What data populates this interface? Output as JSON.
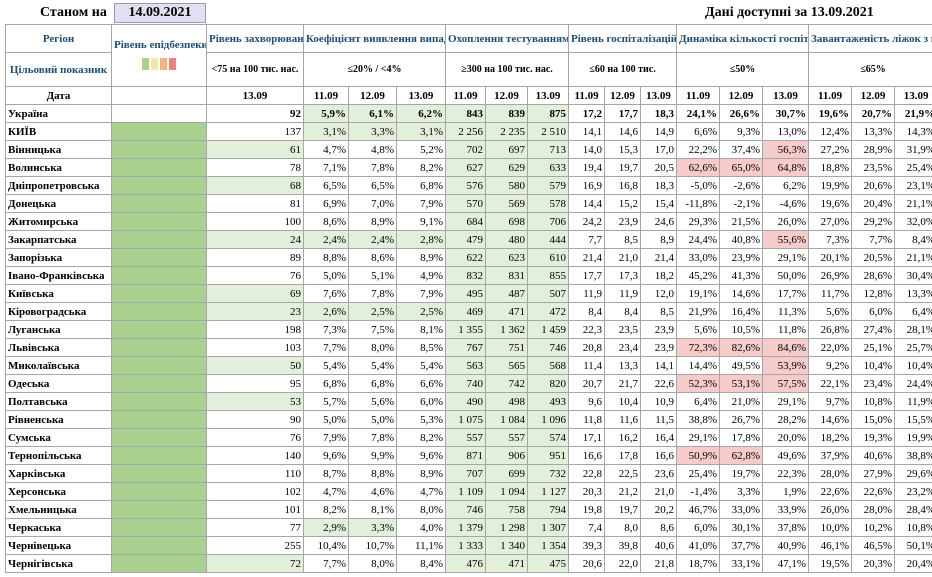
{
  "top": {
    "as_of_label": "Станом на",
    "as_of_date": "14.09.2021",
    "data_available": "Дані доступні за 13.09.2021"
  },
  "headers": {
    "region": "Регіон",
    "target": "Цільовий показник",
    "date_label": "Дата",
    "epid": "Рівень епідбезпеки",
    "morbidity": "Рівень захворюваності",
    "morbidity_target": "<75 на 100 тис. нас.",
    "detection": "Коефіцієнт виявлення випадків інфікування",
    "detection_target": "≤20% / <4%",
    "testing": "Охоплення тестуванням",
    "testing_target": "≥300 на 100 тис. нас.",
    "hosp": "Рівень госпіталізацій",
    "hosp_target": "≤60 на 100 тис.",
    "hosp_dyn": "Динаміка кількості госпіталізацій",
    "hosp_dyn_target": "≤50%",
    "oxygen": "Завантаженість ліжок з киснем",
    "oxygen_target": "≤65%"
  },
  "legend_colors": [
    "#a9d08e",
    "#ffe699",
    "#f4b183",
    "#f08080"
  ],
  "colors": {
    "zone_green": "#a9d08e",
    "light_green": "#e2efda",
    "light_red": "#f8cbcb",
    "header_blue": "#1f4e79"
  },
  "dates": {
    "morbidity": "13.09",
    "triple": [
      "11.09",
      "12.09",
      "13.09"
    ]
  },
  "ukraine": {
    "name": "Україна",
    "morbidity": "92",
    "detection": [
      "5,9%",
      "6,1%",
      "6,2%"
    ],
    "testing": [
      "843",
      "839",
      "875"
    ],
    "hosp": [
      "17,2",
      "17,7",
      "18,3"
    ],
    "hosp_dyn": [
      "24,1%",
      "26,6%",
      "30,7%"
    ],
    "oxygen": [
      "19,6%",
      "20,7%",
      "21,9%"
    ]
  },
  "regions": [
    {
      "name": "КИЇВ",
      "morbidity": "137",
      "detection": [
        "3,1%",
        "3,3%",
        "3,1%"
      ],
      "testing": [
        "2 256",
        "2 235",
        "2 510"
      ],
      "hosp": [
        "14,1",
        "14,6",
        "14,9"
      ],
      "hosp_dyn": [
        "6,6%",
        "9,3%",
        "13,0%"
      ],
      "oxygen": [
        "12,4%",
        "13,3%",
        "14,3%"
      ]
    },
    {
      "name": "Вінницька",
      "morbidity": "61",
      "detection": [
        "4,7%",
        "4,8%",
        "5,2%"
      ],
      "testing": [
        "702",
        "697",
        "713"
      ],
      "hosp": [
        "14,0",
        "15,3",
        "17,0"
      ],
      "hosp_dyn": [
        "22,2%",
        "37,4%",
        "56,3%"
      ],
      "oxygen": [
        "27,2%",
        "28,9%",
        "31,9%"
      ]
    },
    {
      "name": "Волинська",
      "morbidity": "78",
      "detection": [
        "7,1%",
        "7,8%",
        "8,2%"
      ],
      "testing": [
        "627",
        "629",
        "633"
      ],
      "hosp": [
        "19,4",
        "19,7",
        "20,5"
      ],
      "hosp_dyn": [
        "62,6%",
        "65,0%",
        "64,8%"
      ],
      "oxygen": [
        "18,8%",
        "23,5%",
        "25,4%"
      ]
    },
    {
      "name": "Дніпропетровська",
      "morbidity": "68",
      "detection": [
        "6,5%",
        "6,5%",
        "6,8%"
      ],
      "testing": [
        "576",
        "580",
        "579"
      ],
      "hosp": [
        "16,9",
        "16,8",
        "18,3"
      ],
      "hosp_dyn": [
        "-5,0%",
        "-2,6%",
        "6,2%"
      ],
      "oxygen": [
        "19,9%",
        "20,6%",
        "23,1%"
      ]
    },
    {
      "name": "Донецька",
      "morbidity": "81",
      "detection": [
        "6,9%",
        "7,0%",
        "7,9%"
      ],
      "testing": [
        "570",
        "569",
        "578"
      ],
      "hosp": [
        "14,4",
        "15,2",
        "15,4"
      ],
      "hosp_dyn": [
        "-11,8%",
        "-2,1%",
        "-4,6%"
      ],
      "oxygen": [
        "19,6%",
        "20,4%",
        "21,1%"
      ]
    },
    {
      "name": "Житомирська",
      "morbidity": "100",
      "detection": [
        "8,6%",
        "8,9%",
        "9,1%"
      ],
      "testing": [
        "684",
        "698",
        "706"
      ],
      "hosp": [
        "24,2",
        "23,9",
        "24,6"
      ],
      "hosp_dyn": [
        "29,3%",
        "21,5%",
        "26,0%"
      ],
      "oxygen": [
        "27,0%",
        "29,2%",
        "32,0%"
      ]
    },
    {
      "name": "Закарпатська",
      "morbidity": "24",
      "detection": [
        "2,4%",
        "2,4%",
        "2,8%"
      ],
      "testing": [
        "479",
        "480",
        "444"
      ],
      "hosp": [
        "7,7",
        "8,5",
        "8,9"
      ],
      "hosp_dyn": [
        "24,4%",
        "40,8%",
        "55,6%"
      ],
      "oxygen": [
        "7,3%",
        "7,7%",
        "8,4%"
      ]
    },
    {
      "name": "Запорізька",
      "morbidity": "89",
      "detection": [
        "8,8%",
        "8,6%",
        "8,9%"
      ],
      "testing": [
        "622",
        "623",
        "610"
      ],
      "hosp": [
        "21,4",
        "21,0",
        "21,4"
      ],
      "hosp_dyn": [
        "33,0%",
        "23,9%",
        "29,1%"
      ],
      "oxygen": [
        "20,1%",
        "20,5%",
        "21,1%"
      ]
    },
    {
      "name": "Івано-Франківська",
      "morbidity": "76",
      "detection": [
        "5,0%",
        "5,1%",
        "4,9%"
      ],
      "testing": [
        "832",
        "831",
        "855"
      ],
      "hosp": [
        "17,7",
        "17,3",
        "18,2"
      ],
      "hosp_dyn": [
        "45,2%",
        "41,3%",
        "50,0%"
      ],
      "oxygen": [
        "26,9%",
        "28,6%",
        "30,4%"
      ]
    },
    {
      "name": "Київська",
      "morbidity": "69",
      "detection": [
        "7,6%",
        "7,8%",
        "7,9%"
      ],
      "testing": [
        "495",
        "487",
        "507"
      ],
      "hosp": [
        "11,9",
        "11,9",
        "12,0"
      ],
      "hosp_dyn": [
        "19,1%",
        "14,6%",
        "17,7%"
      ],
      "oxygen": [
        "11,7%",
        "12,8%",
        "13,3%"
      ]
    },
    {
      "name": "Кіровоградська",
      "morbidity": "23",
      "detection": [
        "2,6%",
        "2,5%",
        "2,5%"
      ],
      "testing": [
        "469",
        "471",
        "472"
      ],
      "hosp": [
        "8,4",
        "8,4",
        "8,5"
      ],
      "hosp_dyn": [
        "21,9%",
        "16,4%",
        "11,3%"
      ],
      "oxygen": [
        "5,6%",
        "6,0%",
        "6,4%"
      ]
    },
    {
      "name": "Луганська",
      "morbidity": "198",
      "detection": [
        "7,3%",
        "7,5%",
        "8,1%"
      ],
      "testing": [
        "1 355",
        "1 362",
        "1 459"
      ],
      "hosp": [
        "22,3",
        "23,5",
        "23,9"
      ],
      "hosp_dyn": [
        "5,6%",
        "10,5%",
        "11,8%"
      ],
      "oxygen": [
        "26,8%",
        "27,4%",
        "28,1%"
      ]
    },
    {
      "name": "Львівська",
      "morbidity": "103",
      "detection": [
        "7,7%",
        "8,0%",
        "8,5%"
      ],
      "testing": [
        "767",
        "751",
        "746"
      ],
      "hosp": [
        "20,8",
        "23,4",
        "23,9"
      ],
      "hosp_dyn": [
        "72,3%",
        "82,6%",
        "84,6%"
      ],
      "oxygen": [
        "22,0%",
        "25,1%",
        "25,7%"
      ]
    },
    {
      "name": "Миколаївська",
      "morbidity": "50",
      "detection": [
        "5,4%",
        "5,4%",
        "5,4%"
      ],
      "testing": [
        "563",
        "565",
        "568"
      ],
      "hosp": [
        "11,4",
        "13,3",
        "14,1"
      ],
      "hosp_dyn": [
        "14,4%",
        "49,5%",
        "53,9%"
      ],
      "oxygen": [
        "9,2%",
        "10,4%",
        "10,4%"
      ]
    },
    {
      "name": "Одеська",
      "morbidity": "95",
      "detection": [
        "6,8%",
        "6,8%",
        "6,6%"
      ],
      "testing": [
        "740",
        "742",
        "820"
      ],
      "hosp": [
        "20,7",
        "21,7",
        "22,6"
      ],
      "hosp_dyn": [
        "52,3%",
        "53,1%",
        "57,5%"
      ],
      "oxygen": [
        "22,1%",
        "23,4%",
        "24,4%"
      ]
    },
    {
      "name": "Полтавська",
      "morbidity": "53",
      "detection": [
        "5,7%",
        "5,6%",
        "6,0%"
      ],
      "testing": [
        "490",
        "498",
        "493"
      ],
      "hosp": [
        "9,6",
        "10,4",
        "10,9"
      ],
      "hosp_dyn": [
        "6,4%",
        "21,0%",
        "29,1%"
      ],
      "oxygen": [
        "9,7%",
        "10,8%",
        "11,9%"
      ]
    },
    {
      "name": "Рівненська",
      "morbidity": "90",
      "detection": [
        "5,0%",
        "5,0%",
        "5,3%"
      ],
      "testing": [
        "1 075",
        "1 084",
        "1 096"
      ],
      "hosp": [
        "11,8",
        "11,6",
        "11,5"
      ],
      "hosp_dyn": [
        "38,8%",
        "26,7%",
        "28,2%"
      ],
      "oxygen": [
        "14,6%",
        "15,0%",
        "15,5%"
      ]
    },
    {
      "name": "Сумська",
      "morbidity": "76",
      "detection": [
        "7,9%",
        "7,8%",
        "8,2%"
      ],
      "testing": [
        "557",
        "557",
        "574"
      ],
      "hosp": [
        "17,1",
        "16,2",
        "16,4"
      ],
      "hosp_dyn": [
        "29,1%",
        "17,8%",
        "20,0%"
      ],
      "oxygen": [
        "18,2%",
        "19,3%",
        "19,9%"
      ]
    },
    {
      "name": "Тернопільська",
      "morbidity": "140",
      "detection": [
        "9,6%",
        "9,9%",
        "9,6%"
      ],
      "testing": [
        "871",
        "906",
        "951"
      ],
      "hosp": [
        "16,6",
        "17,8",
        "16,6"
      ],
      "hosp_dyn": [
        "50,9%",
        "62,8%",
        "49,6%"
      ],
      "oxygen": [
        "37,9%",
        "40,6%",
        "38,8%"
      ]
    },
    {
      "name": "Харківська",
      "morbidity": "110",
      "detection": [
        "8,7%",
        "8,8%",
        "8,9%"
      ],
      "testing": [
        "707",
        "699",
        "732"
      ],
      "hosp": [
        "22,8",
        "22,5",
        "23,6"
      ],
      "hosp_dyn": [
        "25,4%",
        "19,7%",
        "22,3%"
      ],
      "oxygen": [
        "28,0%",
        "27,9%",
        "29,6%"
      ]
    },
    {
      "name": "Херсонська",
      "morbidity": "102",
      "detection": [
        "4,7%",
        "4,6%",
        "4,7%"
      ],
      "testing": [
        "1 109",
        "1 094",
        "1 127"
      ],
      "hosp": [
        "20,3",
        "21,2",
        "21,0"
      ],
      "hosp_dyn": [
        "-1,4%",
        "3,3%",
        "1,9%"
      ],
      "oxygen": [
        "22,6%",
        "22,6%",
        "23,2%"
      ]
    },
    {
      "name": "Хмельницька",
      "morbidity": "101",
      "detection": [
        "8,2%",
        "8,1%",
        "8,0%"
      ],
      "testing": [
        "746",
        "758",
        "794"
      ],
      "hosp": [
        "19,8",
        "19,7",
        "20,2"
      ],
      "hosp_dyn": [
        "46,7%",
        "33,0%",
        "33,9%"
      ],
      "oxygen": [
        "26,0%",
        "28,0%",
        "28,4%"
      ]
    },
    {
      "name": "Черкаська",
      "morbidity": "77",
      "detection": [
        "2,9%",
        "3,3%",
        "4,0%"
      ],
      "testing": [
        "1 379",
        "1 298",
        "1 307"
      ],
      "hosp": [
        "7,4",
        "8,0",
        "8,6"
      ],
      "hosp_dyn": [
        "6,0%",
        "30,1%",
        "37,8%"
      ],
      "oxygen": [
        "10,0%",
        "10,2%",
        "10,8%"
      ]
    },
    {
      "name": "Чернівецька",
      "morbidity": "255",
      "detection": [
        "10,4%",
        "10,7%",
        "11,1%"
      ],
      "testing": [
        "1 333",
        "1 340",
        "1 354"
      ],
      "hosp": [
        "39,3",
        "39,8",
        "40,6"
      ],
      "hosp_dyn": [
        "41,0%",
        "37,7%",
        "40,9%"
      ],
      "oxygen": [
        "46,1%",
        "46,5%",
        "50,1%"
      ]
    },
    {
      "name": "Чернігівська",
      "morbidity": "72",
      "detection": [
        "7,7%",
        "8,0%",
        "8,4%"
      ],
      "testing": [
        "476",
        "471",
        "475"
      ],
      "hosp": [
        "20,6",
        "22,0",
        "21,8"
      ],
      "hosp_dyn": [
        "18,7%",
        "33,1%",
        "47,1%"
      ],
      "oxygen": [
        "19,5%",
        "20,3%",
        "20,4%"
      ]
    }
  ]
}
